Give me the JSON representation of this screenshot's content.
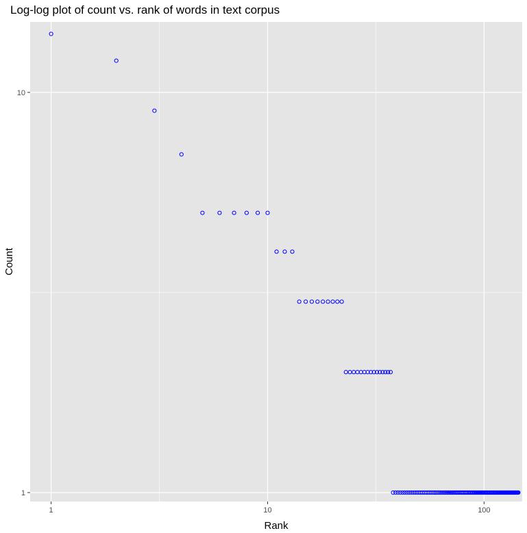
{
  "chart_data": {
    "type": "scatter",
    "title": "Log-log plot of count vs. rank of words in text corpus",
    "xlabel": "Rank",
    "ylabel": "Count",
    "x_scale": "log10",
    "y_scale": "log10",
    "xlim": [
      0.8,
      150
    ],
    "ylim": [
      0.95,
      15
    ],
    "x_ticks": [
      1,
      10,
      100
    ],
    "x_tick_labels": [
      "1",
      "10",
      "100"
    ],
    "y_ticks": [
      1,
      10
    ],
    "y_tick_labels": [
      "1",
      "10"
    ],
    "grid": true,
    "legend": "none",
    "colors": {
      "panel_background": "#e5e5e5",
      "grid": "#ffffff",
      "point_stroke": "#0000ff"
    },
    "marker": "open-circle",
    "counts_by_rank_range": [
      {
        "rank_from": 1,
        "rank_to": 1,
        "count": 14
      },
      {
        "rank_from": 2,
        "rank_to": 2,
        "count": 12
      },
      {
        "rank_from": 3,
        "rank_to": 3,
        "count": 9
      },
      {
        "rank_from": 4,
        "rank_to": 4,
        "count": 7
      },
      {
        "rank_from": 5,
        "rank_to": 10,
        "count": 5
      },
      {
        "rank_from": 11,
        "rank_to": 13,
        "count": 4
      },
      {
        "rank_from": 14,
        "rank_to": 22,
        "count": 3
      },
      {
        "rank_from": 23,
        "rank_to": 37,
        "count": 2
      },
      {
        "rank_from": 38,
        "rank_to": 144,
        "count": 1
      }
    ]
  }
}
